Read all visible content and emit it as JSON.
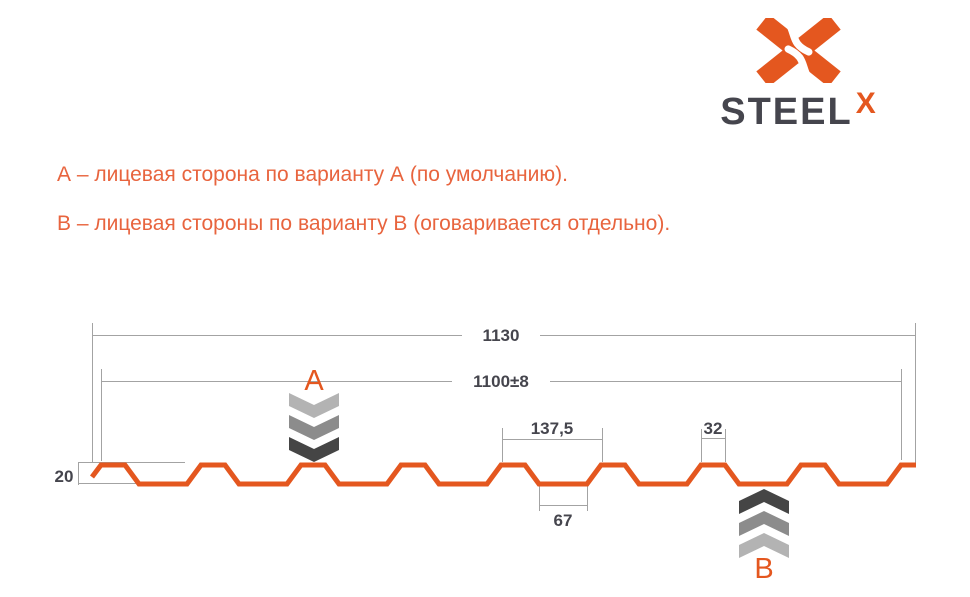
{
  "logo": {
    "brand": "STEEL",
    "brand_sup": "X"
  },
  "notes": {
    "line_a": "А – лицевая сторона по варианту А (по умолчанию).",
    "line_b": "В – лицевая стороны по варианту В (оговаривается отдельно)."
  },
  "drawing": {
    "dims": {
      "overall_width": "1130",
      "cover_width": "1100±8",
      "rib_pitch": "137,5",
      "rib_top": "32",
      "profile_height": "20",
      "valley_bottom": "67"
    },
    "markers": {
      "front_a": "A",
      "front_b": "B"
    }
  },
  "colors": {
    "accent_orange": "#E4571F",
    "text_orange": "#E8643E",
    "ink": "#45454D",
    "dim_line": "#A3A3A3",
    "chevron_light": "#B3B3B3",
    "chevron_mid": "#8C8C8C",
    "chevron_dark": "#454545"
  }
}
